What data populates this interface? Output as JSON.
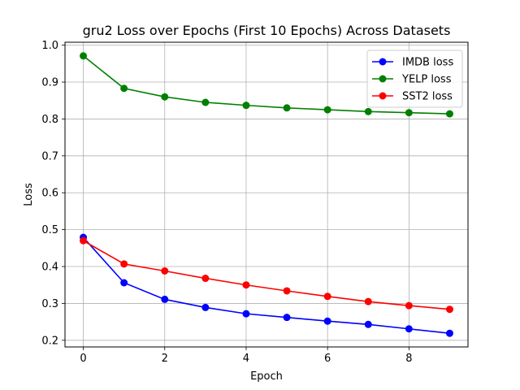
{
  "chart_data": {
    "type": "line",
    "title": "gru2 Loss over Epochs (First 10 Epochs) Across Datasets",
    "xlabel": "Epoch",
    "ylabel": "Loss",
    "x": [
      0,
      1,
      2,
      3,
      4,
      5,
      6,
      7,
      8,
      9
    ],
    "xlim": [
      -0.45,
      9.45
    ],
    "ylim": [
      0.182,
      1.008
    ],
    "xticks": [
      0,
      2,
      4,
      6,
      8
    ],
    "xtick_labels": [
      "0",
      "2",
      "4",
      "6",
      "8"
    ],
    "yticks": [
      0.2,
      0.3,
      0.4,
      0.5,
      0.6,
      0.7,
      0.8,
      0.9,
      1.0
    ],
    "ytick_labels": [
      "0.2",
      "0.3",
      "0.4",
      "0.5",
      "0.6",
      "0.7",
      "0.8",
      "0.9",
      "1.0"
    ],
    "grid": true,
    "legend_position": "top-right",
    "series": [
      {
        "name": "IMDB loss",
        "color": "#0000ff",
        "values": [
          0.479,
          0.356,
          0.311,
          0.289,
          0.272,
          0.262,
          0.252,
          0.243,
          0.231,
          0.219
        ]
      },
      {
        "name": "YELP loss",
        "color": "#008000",
        "values": [
          0.971,
          0.883,
          0.86,
          0.845,
          0.837,
          0.83,
          0.825,
          0.82,
          0.817,
          0.814
        ]
      },
      {
        "name": "SST2 loss",
        "color": "#ff0000",
        "values": [
          0.47,
          0.407,
          0.388,
          0.368,
          0.35,
          0.334,
          0.319,
          0.305,
          0.294,
          0.284
        ]
      }
    ]
  }
}
